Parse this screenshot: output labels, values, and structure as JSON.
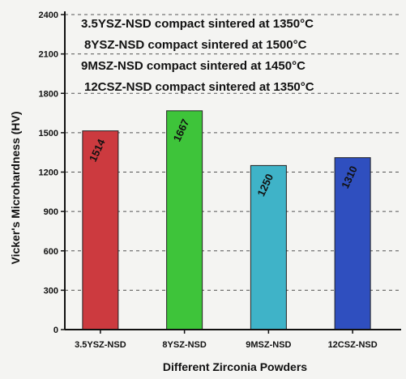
{
  "chart_data": {
    "type": "bar",
    "title": "",
    "xlabel": "Different Zirconia Powders",
    "ylabel": "Vicker's Microhardness (HV)",
    "ylim": [
      0,
      2400
    ],
    "yticks": [
      0,
      300,
      600,
      900,
      1200,
      1500,
      1800,
      2100,
      2400
    ],
    "grid": "horizontal-dashed",
    "categories": [
      "3.5YSZ-NSD",
      "8YSZ-NSD",
      "9MSZ-NSD",
      "12CSZ-NSD"
    ],
    "values": [
      1514,
      1667,
      1250,
      1310
    ],
    "data_labels": [
      "1514",
      "1667",
      "1250",
      "1310"
    ],
    "bar_colors": [
      "#cc3a3f",
      "#3ec43a",
      "#3fb3c8",
      "#2f4fbf"
    ],
    "legend_placement": "top-left",
    "legend_entries": [
      "3.5YSZ-NSD compact sintered at 1350°C",
      "8YSZ-NSD compact sintered at 1500°C",
      "9MSZ-NSD compact sintered at 1450°C",
      "12CSZ-NSD compact sintered at 1350°C"
    ]
  }
}
